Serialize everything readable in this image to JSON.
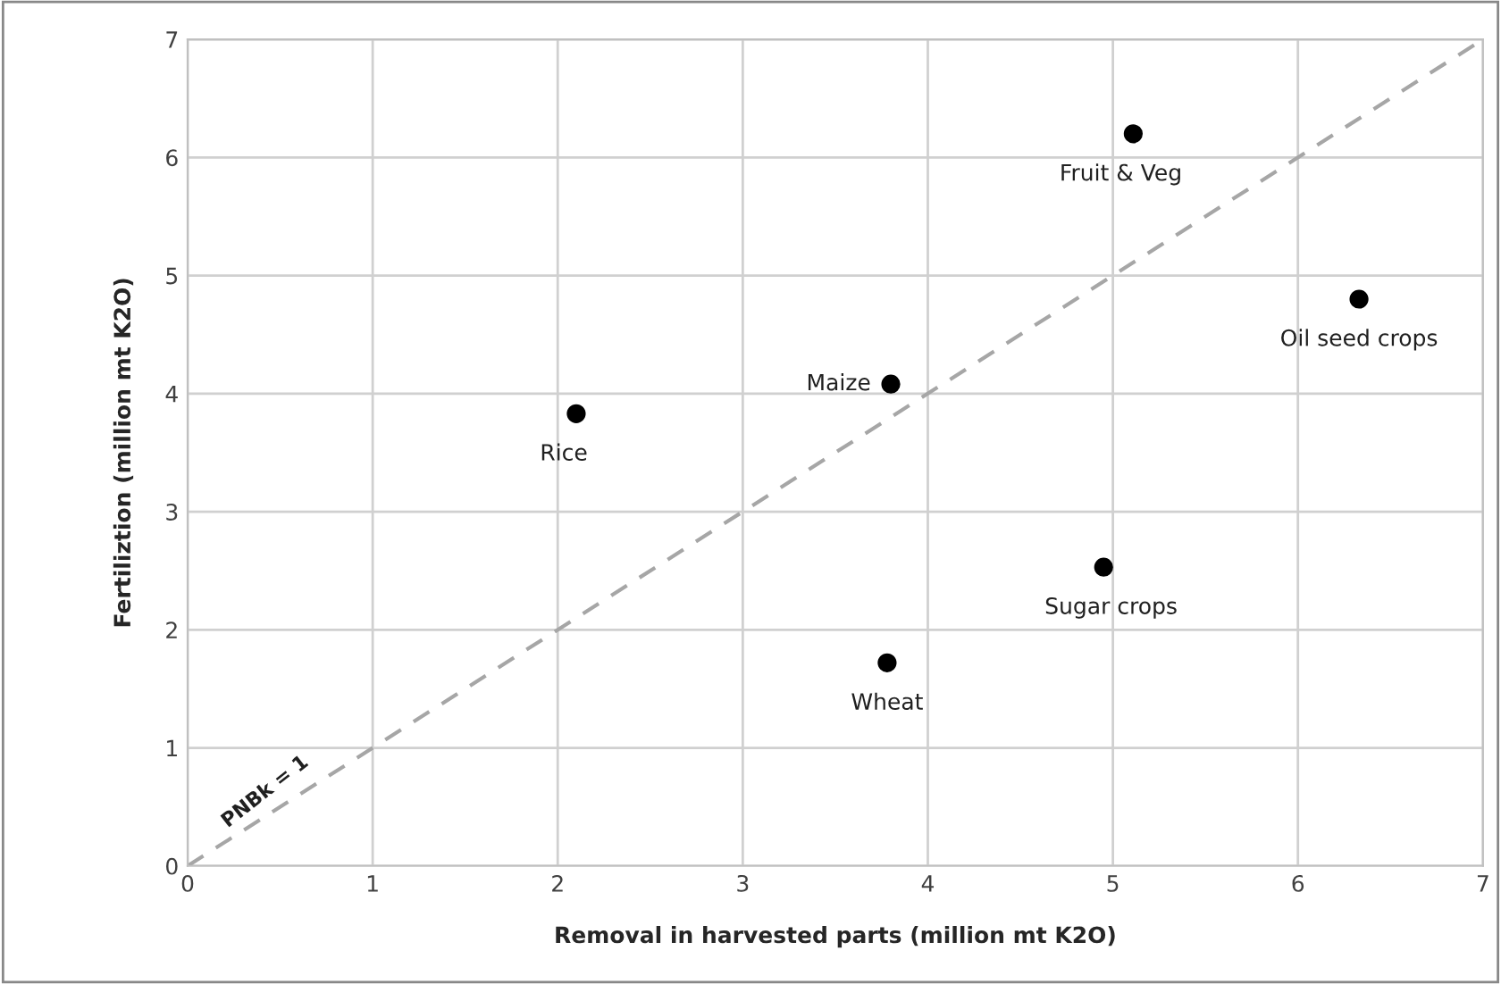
{
  "chart_data": {
    "type": "scatter",
    "xlabel": "Removal in harvested parts (million mt K2O)",
    "ylabel": "Fertiliztion (million mt K2O)",
    "xlim": [
      0,
      7
    ],
    "ylim": [
      0,
      7
    ],
    "xticks": [
      0,
      1,
      2,
      3,
      4,
      5,
      6,
      7
    ],
    "yticks": [
      0,
      1,
      2,
      3,
      4,
      5,
      6,
      7
    ],
    "grid": true,
    "marker": "circle",
    "series": [
      {
        "color": "#000000",
        "x": [
          5.11,
          6.33,
          3.8,
          2.1,
          4.95,
          3.78
        ],
        "values": [
          6.2,
          4.8,
          4.08,
          3.83,
          2.53,
          1.72
        ]
      },
      {
        "type": "line",
        "color": "#a6a6a6",
        "line_style": "dashed",
        "marker": "none",
        "x": [
          0,
          7
        ],
        "values": [
          0,
          7
        ]
      }
    ],
    "annotations": [
      {
        "text": "Fruit & Veg",
        "x": 5.11,
        "y": 6.2
      },
      {
        "text": "Oil seed crops",
        "x": 6.33,
        "y": 4.8
      },
      {
        "text": "Maize",
        "x": 3.8,
        "y": 4.08
      },
      {
        "text": "Rice",
        "x": 2.1,
        "y": 3.83
      },
      {
        "text": "Sugar crops",
        "x": 4.95,
        "y": 2.53
      },
      {
        "text": "Wheat",
        "x": 3.78,
        "y": 1.72
      },
      {
        "text": "PNBk = 1",
        "x": 0.5,
        "y": 0.5
      }
    ]
  }
}
